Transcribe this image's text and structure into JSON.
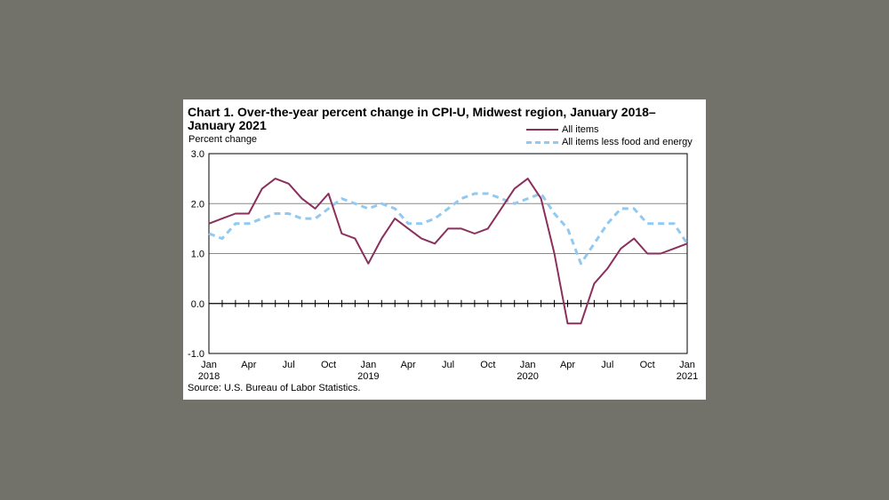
{
  "chart_data": {
    "type": "line",
    "title": "Chart 1. Over-the-year percent change in CPI-U, Midwest region, January 2018–January 2021",
    "ylabel": "Percent change",
    "xlabel": "",
    "ylim": [
      -1.0,
      3.0
    ],
    "yticks": [
      "3.0",
      "2.0",
      "1.0",
      "0.0",
      "-1.0"
    ],
    "ytick_values": [
      3.0,
      2.0,
      1.0,
      0.0,
      -1.0
    ],
    "grid": true,
    "legend_position": "top-right",
    "x_tick_labels": [
      {
        "i": 0,
        "month": "Jan",
        "year": "2018"
      },
      {
        "i": 3,
        "month": "Apr",
        "year": ""
      },
      {
        "i": 6,
        "month": "Jul",
        "year": ""
      },
      {
        "i": 9,
        "month": "Oct",
        "year": ""
      },
      {
        "i": 12,
        "month": "Jan",
        "year": "2019"
      },
      {
        "i": 15,
        "month": "Apr",
        "year": ""
      },
      {
        "i": 18,
        "month": "Jul",
        "year": ""
      },
      {
        "i": 21,
        "month": "Oct",
        "year": ""
      },
      {
        "i": 24,
        "month": "Jan",
        "year": "2020"
      },
      {
        "i": 27,
        "month": "Apr",
        "year": ""
      },
      {
        "i": 30,
        "month": "Jul",
        "year": ""
      },
      {
        "i": 33,
        "month": "Oct",
        "year": ""
      },
      {
        "i": 36,
        "month": "Jan",
        "year": "2021"
      }
    ],
    "series": [
      {
        "name": "All items",
        "color": "#8b2f5c",
        "style": "solid",
        "values": [
          1.6,
          1.7,
          1.8,
          1.8,
          2.3,
          2.5,
          2.4,
          2.1,
          1.9,
          2.2,
          1.4,
          1.3,
          0.8,
          1.3,
          1.7,
          1.5,
          1.3,
          1.2,
          1.5,
          1.5,
          1.4,
          1.5,
          1.9,
          2.3,
          2.5,
          2.1,
          1.0,
          -0.4,
          -0.4,
          0.4,
          0.7,
          1.1,
          1.3,
          1.0,
          1.0,
          1.1,
          1.2
        ]
      },
      {
        "name": "All items less food and energy",
        "color": "#92c9f0",
        "style": "dashed",
        "values": [
          1.4,
          1.3,
          1.6,
          1.6,
          1.7,
          1.8,
          1.8,
          1.7,
          1.7,
          1.9,
          2.1,
          2.0,
          1.9,
          2.0,
          1.9,
          1.6,
          1.6,
          1.7,
          1.9,
          2.1,
          2.2,
          2.2,
          2.1,
          2.0,
          2.1,
          2.2,
          1.8,
          1.5,
          0.8,
          1.2,
          1.6,
          1.9,
          1.9,
          1.6,
          1.6,
          1.6,
          1.2
        ]
      }
    ]
  },
  "source": "Source: U.S. Bureau of Labor Statistics."
}
